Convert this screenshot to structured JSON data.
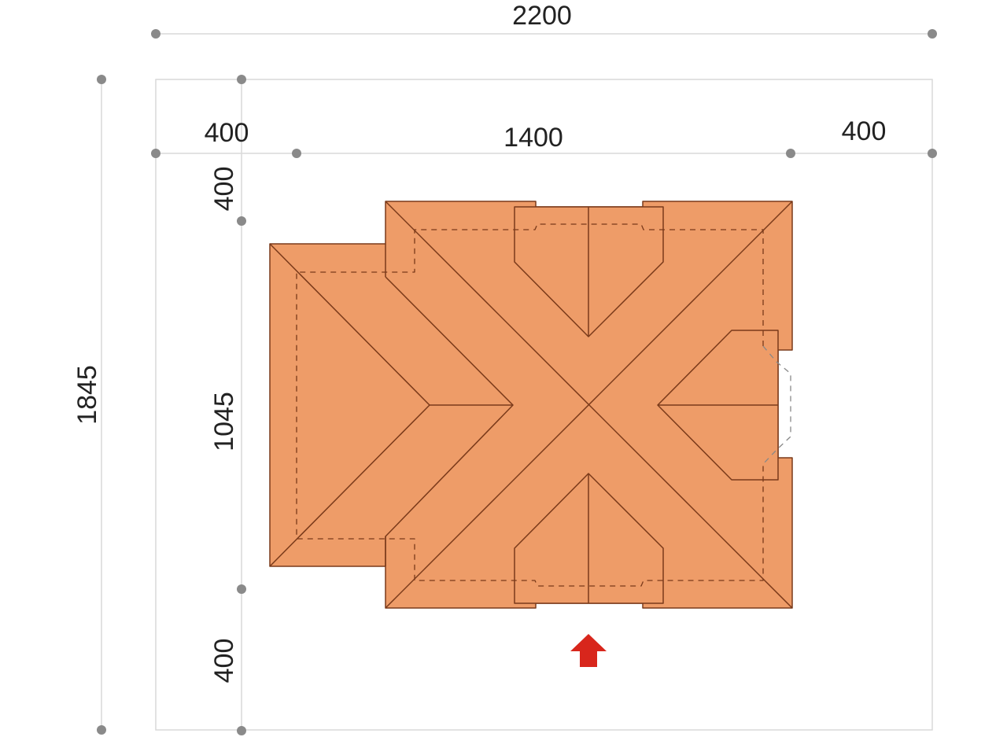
{
  "dimensions": {
    "overall_width": "2200",
    "overall_depth": "1845",
    "left_setback": "400",
    "building_width": "1400",
    "right_setback": "400",
    "front_setback_top": "400",
    "building_depth": "1045",
    "rear_setback_bottom": "400"
  },
  "colors": {
    "roof_fill": "#EE9C68",
    "roof_line": "#7A3A1A",
    "entrance_arrow": "#D8261C",
    "dimension_line": "#D9D9D9",
    "dimension_dot": "#8A8A8A"
  },
  "icons": {
    "entrance": "arrow-up-icon"
  }
}
